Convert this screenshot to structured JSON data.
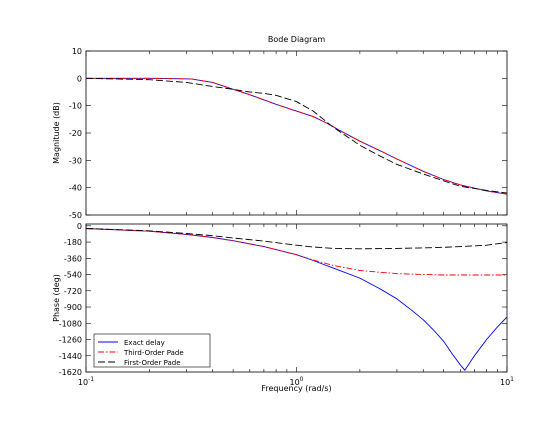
{
  "chart_data": [
    {
      "type": "line",
      "title": "Bode Diagram",
      "xlabel": "",
      "ylabel": "Magnitude (dB)",
      "xscale": "log",
      "xlim": [
        0.1,
        10
      ],
      "ylim": [
        -50,
        10
      ],
      "yticks": [
        "10",
        "0",
        "-10",
        "-20",
        "-30",
        "-40",
        "-50"
      ],
      "ytick_values": [
        10,
        0,
        -10,
        -20,
        -30,
        -40,
        -50
      ],
      "grid": false,
      "series": [
        {
          "color": "#0000ff",
          "dash": "solid",
          "x": [
            0.1,
            0.2,
            0.316,
            0.4,
            0.5,
            0.6,
            0.8,
            1.0,
            1.2,
            1.4,
            1.6,
            2.0,
            2.5,
            3.0,
            4.0,
            5.0,
            6.0,
            8.0,
            10.0
          ],
          "y": [
            0,
            0,
            -0.2,
            -1.5,
            -4,
            -6,
            -9.5,
            -12,
            -14,
            -16.5,
            -19,
            -23,
            -26.5,
            -29.5,
            -34,
            -37,
            -39,
            -41.2,
            -42.4
          ]
        },
        {
          "color": "#ff0000",
          "dash": "dashdot",
          "x": [
            0.1,
            0.2,
            0.316,
            0.4,
            0.5,
            0.6,
            0.8,
            1.0,
            1.2,
            1.4,
            1.6,
            2.0,
            2.5,
            3.0,
            4.0,
            5.0,
            6.0,
            8.0,
            10.0
          ],
          "y": [
            0,
            0,
            -0.2,
            -1.5,
            -4,
            -6,
            -9.5,
            -12,
            -14,
            -16.5,
            -19,
            -23,
            -26.5,
            -29.5,
            -34,
            -37,
            -39,
            -41.2,
            -42.4
          ]
        },
        {
          "color": "#000000",
          "dash": "dashed",
          "x": [
            0.1,
            0.2,
            0.3,
            0.4,
            0.5,
            0.6,
            0.7,
            0.8,
            1.0,
            1.2,
            1.5,
            2.0,
            2.5,
            3.0,
            4.0,
            5.0,
            6.0,
            8.0,
            10.0
          ],
          "y": [
            0,
            -0.5,
            -1.5,
            -3,
            -4,
            -5,
            -5.5,
            -6.2,
            -8.5,
            -12,
            -18,
            -24.5,
            -28.5,
            -31.5,
            -35,
            -37.5,
            -39.5,
            -41,
            -42
          ]
        }
      ]
    },
    {
      "type": "line",
      "title": "",
      "xlabel": "Frequency  (rad/s)",
      "ylabel": "Phase (deg)",
      "xscale": "log",
      "xlim": [
        0.1,
        10
      ],
      "ylim": [
        -1620,
        20
      ],
      "xticks": [
        0.1,
        1,
        10
      ],
      "yticks": [
        "0",
        "-180",
        "-360",
        "-540",
        "-720",
        "-900",
        "-1080",
        "-1260",
        "-1440",
        "-1620"
      ],
      "ytick_values": [
        0,
        -180,
        -360,
        -540,
        -720,
        -900,
        -1080,
        -1260,
        -1440,
        -1620
      ],
      "grid": false,
      "legend": {
        "position": "bottom-left",
        "entries": [
          "Exact delay",
          "Third-Order Pade",
          "First-Order Pade"
        ]
      },
      "series": [
        {
          "name": "Exact delay",
          "color": "#0000ff",
          "dash": "solid",
          "x": [
            0.1,
            0.2,
            0.3,
            0.4,
            0.5,
            0.7,
            1.0,
            1.2,
            1.5,
            2.0,
            2.5,
            3.0,
            3.5,
            4.0,
            4.5,
            5.0,
            5.5,
            6.0,
            6.3,
            7.0,
            8.0,
            9.0,
            10.0
          ],
          "y": [
            -30,
            -60,
            -95,
            -130,
            -165,
            -230,
            -320,
            -385,
            -470,
            -580,
            -700,
            -810,
            -930,
            -1040,
            -1160,
            -1280,
            -1420,
            -1540,
            -1600,
            -1440,
            -1260,
            -1120,
            -1010
          ]
        },
        {
          "name": "Third-Order Pade",
          "color": "#ff0000",
          "dash": "dashdot",
          "x": [
            0.1,
            0.2,
            0.3,
            0.4,
            0.5,
            0.7,
            1.0,
            1.2,
            1.5,
            2.0,
            2.5,
            3.0,
            4.0,
            5.0,
            6.0,
            8.0,
            10.0
          ],
          "y": [
            -30,
            -60,
            -95,
            -130,
            -165,
            -230,
            -320,
            -380,
            -440,
            -495,
            -515,
            -530,
            -540,
            -545,
            -545,
            -545,
            -545
          ]
        },
        {
          "name": "First-Order Pade",
          "color": "#000000",
          "dash": "dashed",
          "x": [
            0.1,
            0.2,
            0.3,
            0.4,
            0.5,
            0.7,
            1.0,
            1.2,
            1.5,
            2.0,
            3.0,
            4.0,
            5.0,
            6.0,
            8.0,
            10.0
          ],
          "y": [
            -30,
            -55,
            -85,
            -110,
            -135,
            -170,
            -215,
            -235,
            -250,
            -255,
            -250,
            -245,
            -238,
            -230,
            -215,
            -185
          ]
        }
      ]
    }
  ]
}
